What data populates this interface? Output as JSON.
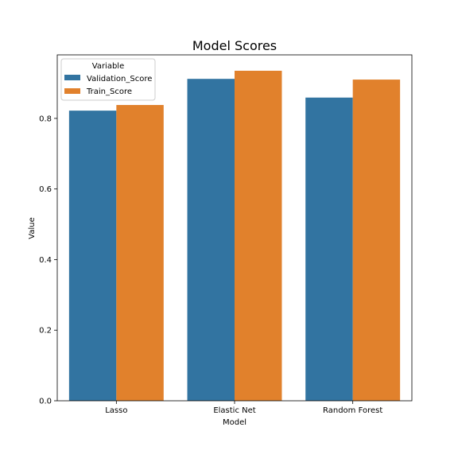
{
  "chart_data": {
    "type": "bar",
    "title": "Model Scores",
    "xlabel": "Model",
    "ylabel": "Value",
    "categories": [
      "Lasso",
      "Elastic Net",
      "Random Forest"
    ],
    "series": [
      {
        "name": "Validation_Score",
        "color": "#3274a1",
        "values": [
          0.822,
          0.912,
          0.859
        ]
      },
      {
        "name": "Train_Score",
        "color": "#e1812c",
        "values": [
          0.838,
          0.935,
          0.91
        ]
      }
    ],
    "ylim": [
      0,
      0.98
    ],
    "yticks": [
      0.0,
      0.2,
      0.4,
      0.6,
      0.8
    ],
    "ytick_labels": [
      "0.0",
      "0.2",
      "0.4",
      "0.6",
      "0.8"
    ],
    "grid": false,
    "legend": {
      "title": "Variable",
      "position": "top-left"
    }
  }
}
